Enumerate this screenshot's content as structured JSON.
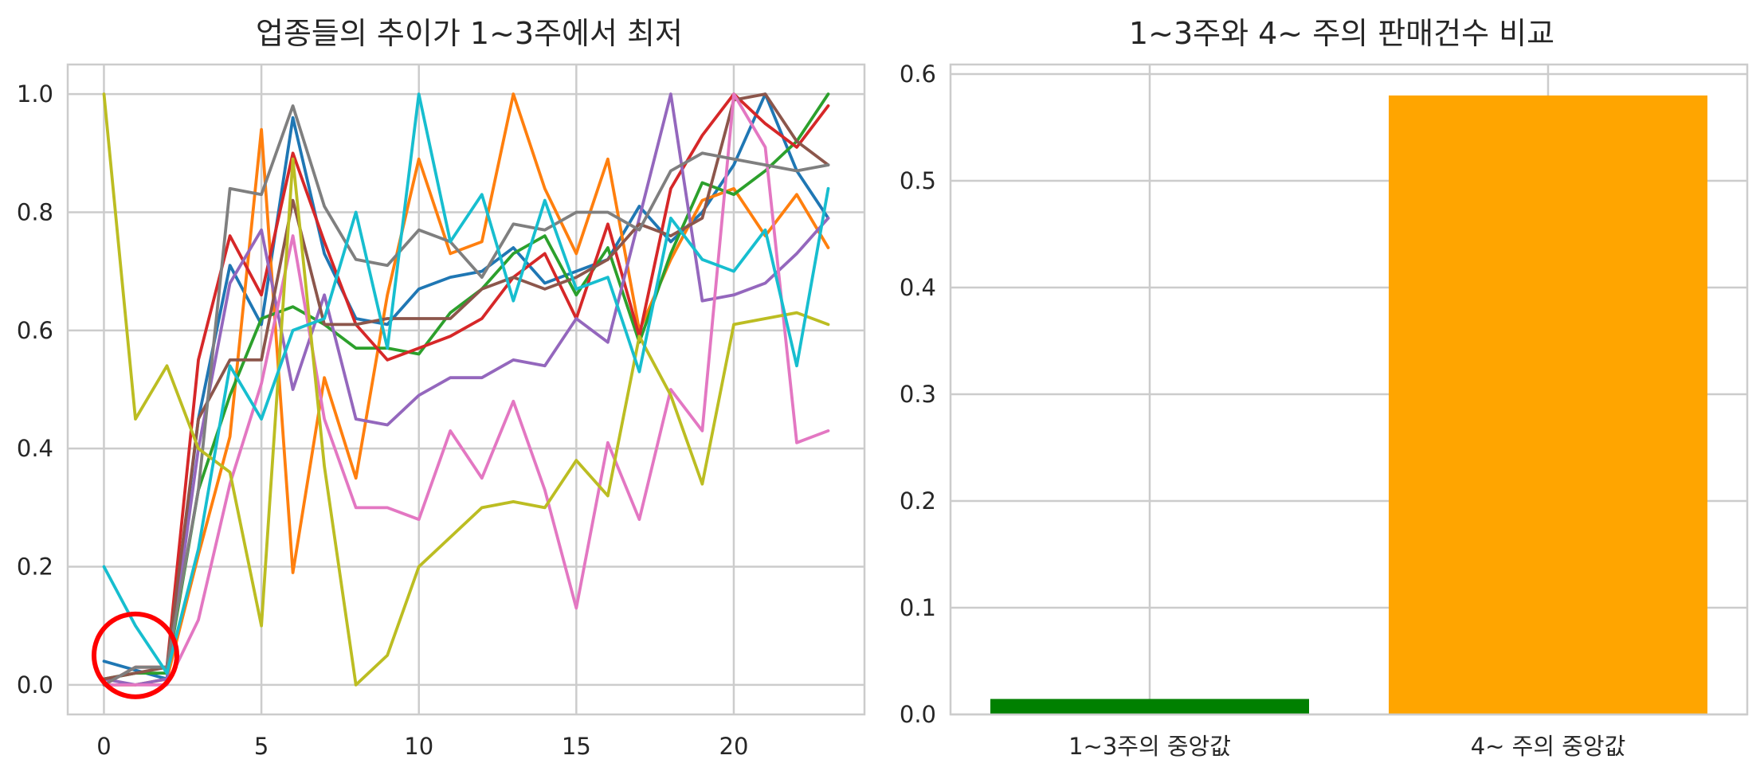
{
  "chart_data": [
    {
      "type": "line",
      "title": "업종들의 추이가 1~3주에서 최저",
      "xlabel": "",
      "ylabel": "",
      "xlim": [
        -1.15,
        24.15
      ],
      "ylim": [
        -0.05,
        1.05
      ],
      "xticks": [
        "0",
        "5",
        "10",
        "15",
        "20"
      ],
      "xtick_values": [
        0,
        5,
        10,
        15,
        20
      ],
      "yticks": [
        "0.0",
        "0.2",
        "0.4",
        "0.6",
        "0.8",
        "1.0"
      ],
      "ytick_values": [
        0.0,
        0.2,
        0.4,
        0.6,
        0.8,
        1.0
      ],
      "grid": true,
      "x": [
        0,
        1,
        2,
        3,
        4,
        5,
        6,
        7,
        8,
        9,
        10,
        11,
        12,
        13,
        14,
        15,
        16,
        17,
        18,
        19,
        20,
        21,
        22,
        23
      ],
      "series": [
        {
          "color": "#1f77b4",
          "values": [
            0.04,
            0.025,
            0.01,
            0.45,
            0.71,
            0.61,
            0.96,
            0.73,
            0.62,
            0.61,
            0.67,
            0.69,
            0.7,
            0.74,
            0.68,
            0.7,
            0.72,
            0.81,
            0.75,
            0.8,
            0.88,
            1.0,
            0.87,
            0.79
          ]
        },
        {
          "color": "#ff7f0e",
          "values": [
            0.0,
            0.0,
            0.01,
            0.22,
            0.42,
            0.94,
            0.19,
            0.52,
            0.35,
            0.66,
            0.89,
            0.73,
            0.75,
            1.0,
            0.84,
            0.73,
            0.89,
            0.6,
            0.72,
            0.82,
            0.84,
            0.76,
            0.83,
            0.74
          ]
        },
        {
          "color": "#2ca02c",
          "values": [
            0.01,
            0.02,
            0.02,
            0.33,
            0.49,
            0.62,
            0.64,
            0.61,
            0.57,
            0.57,
            0.56,
            0.63,
            0.67,
            0.73,
            0.76,
            0.66,
            0.74,
            0.58,
            0.73,
            0.85,
            0.83,
            0.87,
            0.92,
            1.0
          ]
        },
        {
          "color": "#d62728",
          "values": [
            0.0,
            0.03,
            0.03,
            0.55,
            0.76,
            0.66,
            0.9,
            0.75,
            0.61,
            0.55,
            0.57,
            0.59,
            0.62,
            0.69,
            0.73,
            0.62,
            0.78,
            0.59,
            0.84,
            0.93,
            1.0,
            0.95,
            0.91,
            0.98
          ]
        },
        {
          "color": "#9467bd",
          "values": [
            0.01,
            0.0,
            0.01,
            0.4,
            0.68,
            0.77,
            0.5,
            0.66,
            0.45,
            0.44,
            0.49,
            0.52,
            0.52,
            0.55,
            0.54,
            0.62,
            0.58,
            0.79,
            1.0,
            0.65,
            0.66,
            0.68,
            0.73,
            0.79
          ]
        },
        {
          "color": "#8c564b",
          "values": [
            0.01,
            0.02,
            0.03,
            0.45,
            0.55,
            0.55,
            0.82,
            0.61,
            0.61,
            0.62,
            0.62,
            0.62,
            0.67,
            0.69,
            0.67,
            0.69,
            0.72,
            0.78,
            0.76,
            0.79,
            0.99,
            1.0,
            0.92,
            0.88
          ]
        },
        {
          "color": "#e377c2",
          "values": [
            0.0,
            0.0,
            0.0,
            0.11,
            0.34,
            0.51,
            0.76,
            0.45,
            0.3,
            0.3,
            0.28,
            0.43,
            0.35,
            0.48,
            0.33,
            0.13,
            0.41,
            0.28,
            0.5,
            0.43,
            1.0,
            0.91,
            0.41,
            0.43
          ]
        },
        {
          "color": "#7f7f7f",
          "values": [
            0.0,
            0.03,
            0.03,
            0.33,
            0.84,
            0.83,
            0.98,
            0.81,
            0.72,
            0.71,
            0.77,
            0.75,
            0.69,
            0.78,
            0.77,
            0.8,
            0.8,
            0.77,
            0.87,
            0.9,
            0.89,
            0.88,
            0.87,
            0.88
          ]
        },
        {
          "color": "#bcbd22",
          "values": [
            1.0,
            0.45,
            0.54,
            0.4,
            0.36,
            0.1,
            0.89,
            0.37,
            0.0,
            0.05,
            0.2,
            0.25,
            0.3,
            0.31,
            0.3,
            0.38,
            0.32,
            0.59,
            0.49,
            0.34,
            0.61,
            0.62,
            0.63,
            0.61
          ]
        },
        {
          "color": "#17becf",
          "values": [
            0.2,
            0.1,
            0.02,
            0.23,
            0.54,
            0.45,
            0.6,
            0.62,
            0.8,
            0.57,
            1.0,
            0.75,
            0.83,
            0.65,
            0.82,
            0.67,
            0.69,
            0.53,
            0.79,
            0.72,
            0.7,
            0.77,
            0.54,
            0.84
          ]
        }
      ],
      "annotation": {
        "type": "circle",
        "color": "#ff0000",
        "x": 1,
        "y": 0.05
      }
    },
    {
      "type": "bar",
      "title": "1~3주와 4~ 주의 판매건수 비교",
      "xlabel": "",
      "ylabel": "",
      "categories": [
        "1~3주의 중앙값",
        "4~ 주의 중앙값"
      ],
      "values": [
        0.0145,
        0.58
      ],
      "colors": [
        "#008000",
        "#ffa500"
      ],
      "ylim": [
        0,
        0.609
      ],
      "yticks": [
        "0.0",
        "0.1",
        "0.2",
        "0.3",
        "0.4",
        "0.5",
        "0.6"
      ],
      "ytick_values": [
        0.0,
        0.1,
        0.2,
        0.3,
        0.4,
        0.5,
        0.6
      ],
      "grid": true
    }
  ]
}
